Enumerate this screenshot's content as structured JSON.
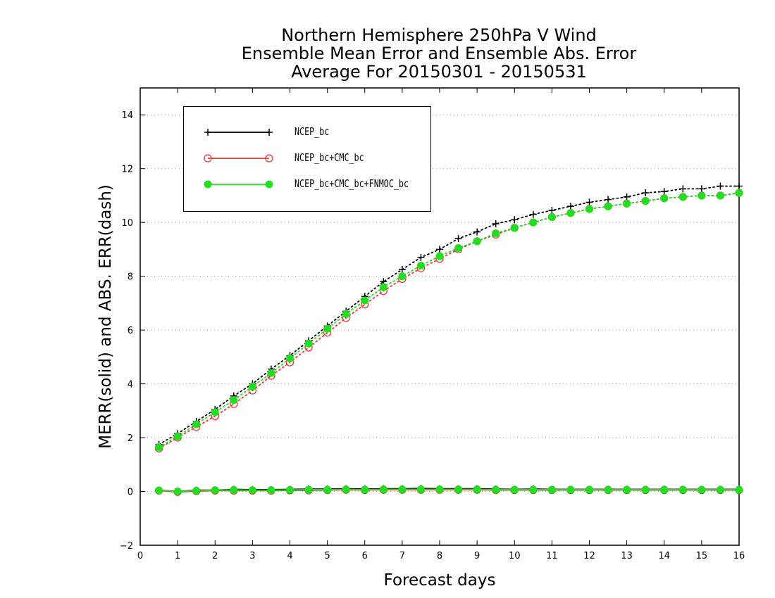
{
  "chart_data": {
    "type": "line",
    "title": [
      "Northern Hemisphere 250hPa V Wind",
      "Ensemble Mean Error and Ensemble Abs. Error",
      "Average For 20150301 - 20150531"
    ],
    "xlabel": "Forecast days",
    "ylabel": "MERR(solid) and ABS. ERR(dash)",
    "xlim": [
      0,
      16
    ],
    "ylim": [
      -2,
      15
    ],
    "xticks": [
      "0",
      "1",
      "2",
      "3",
      "4",
      "5",
      "6",
      "7",
      "8",
      "9",
      "10",
      "11",
      "12",
      "13",
      "14",
      "15",
      "16"
    ],
    "yticks": [
      "−2",
      "0",
      "2",
      "4",
      "6",
      "8",
      "10",
      "12",
      "14"
    ],
    "grid": "horizontal dotted",
    "legend_position": "top-left",
    "x": [
      0.5,
      1,
      1.5,
      2,
      2.5,
      3,
      3.5,
      4,
      4.5,
      5,
      5.5,
      6,
      6.5,
      7,
      7.5,
      8,
      8.5,
      9,
      9.5,
      10,
      10.5,
      11,
      11.5,
      12,
      12.5,
      13,
      13.5,
      14,
      14.5,
      15,
      15.5,
      16
    ],
    "series": [
      {
        "name": "NCEP_bc",
        "color": "#000000",
        "marker": "plus",
        "abs_err": [
          1.75,
          2.15,
          2.6,
          3.05,
          3.55,
          4.0,
          4.55,
          5.05,
          5.6,
          6.15,
          6.7,
          7.25,
          7.8,
          8.25,
          8.7,
          9.0,
          9.4,
          9.65,
          9.95,
          10.1,
          10.3,
          10.45,
          10.6,
          10.75,
          10.85,
          10.95,
          11.1,
          11.15,
          11.25,
          11.25,
          11.35,
          11.35
        ],
        "mean_err": [
          0.05,
          0.0,
          0.05,
          0.05,
          0.08,
          0.07,
          0.07,
          0.08,
          0.09,
          0.09,
          0.1,
          0.09,
          0.1,
          0.1,
          0.11,
          0.1,
          0.1,
          0.1,
          0.09,
          0.08,
          0.09,
          0.08,
          0.08,
          0.08,
          0.08,
          0.08,
          0.08,
          0.08,
          0.08,
          0.08,
          0.08,
          0.08
        ]
      },
      {
        "name": "NCEP_bc+CMC_bc",
        "color": "#e8383b",
        "marker": "open-circle",
        "abs_err": [
          1.6,
          2.0,
          2.4,
          2.8,
          3.25,
          3.75,
          4.3,
          4.8,
          5.35,
          5.9,
          6.45,
          6.95,
          7.45,
          7.9,
          8.3,
          8.65,
          9.0,
          9.3,
          9.55,
          9.8,
          10.0,
          10.2,
          10.35,
          10.5,
          10.6,
          10.7,
          10.8,
          10.9,
          10.95,
          11.0,
          11.0,
          11.1
        ],
        "mean_err": [
          0.03,
          -0.02,
          0.01,
          0.03,
          0.03,
          0.03,
          0.03,
          0.04,
          0.04,
          0.05,
          0.06,
          0.05,
          0.06,
          0.06,
          0.06,
          0.06,
          0.06,
          0.06,
          0.05,
          0.05,
          0.05,
          0.05,
          0.05,
          0.05,
          0.05,
          0.05,
          0.05,
          0.05,
          0.05,
          0.05,
          0.05,
          0.05
        ]
      },
      {
        "name": "NCEP_bc+CMC_bc+FNMOC_bc",
        "color": "#22dd22",
        "marker": "filled-circle",
        "abs_err": [
          1.65,
          2.05,
          2.5,
          2.95,
          3.4,
          3.9,
          4.4,
          4.95,
          5.5,
          6.05,
          6.6,
          7.1,
          7.6,
          8.0,
          8.4,
          8.75,
          9.05,
          9.3,
          9.6,
          9.8,
          10.0,
          10.2,
          10.35,
          10.5,
          10.6,
          10.7,
          10.8,
          10.9,
          10.95,
          11.0,
          11.0,
          11.1
        ],
        "mean_err": [
          0.04,
          0.0,
          0.03,
          0.05,
          0.06,
          0.05,
          0.05,
          0.06,
          0.07,
          0.07,
          0.08,
          0.07,
          0.08,
          0.08,
          0.08,
          0.08,
          0.08,
          0.08,
          0.07,
          0.07,
          0.07,
          0.07,
          0.07,
          0.07,
          0.07,
          0.07,
          0.07,
          0.07,
          0.07,
          0.07,
          0.07,
          0.07
        ]
      }
    ]
  }
}
